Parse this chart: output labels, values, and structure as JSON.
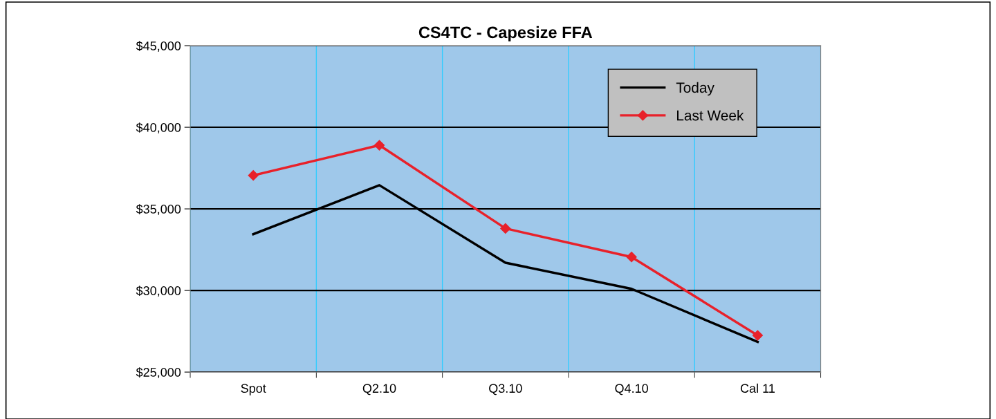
{
  "chart_data": {
    "type": "line",
    "title": "CS4TC - Capesize FFA",
    "categories": [
      "Spot",
      "Q2.10",
      "Q3.10",
      "Q4.10",
      "Cal 11"
    ],
    "series": [
      {
        "name": "Today",
        "color": "#000000",
        "values": [
          33450,
          36450,
          31700,
          30100,
          26850
        ],
        "marker": "none"
      },
      {
        "name": "Last Week",
        "color": "#e8212a",
        "values": [
          37050,
          38900,
          33800,
          32050,
          27250
        ],
        "marker": "diamond"
      }
    ],
    "ylim": [
      25000,
      45000
    ],
    "yticks": [
      {
        "value": 25000,
        "label": "$25,000"
      },
      {
        "value": 30000,
        "label": "$30,000"
      },
      {
        "value": 35000,
        "label": "$35,000"
      },
      {
        "value": 40000,
        "label": "$40,000"
      },
      {
        "value": 45000,
        "label": "$45,000"
      }
    ],
    "grid": true,
    "legend": "top right",
    "line_style": "solid"
  }
}
